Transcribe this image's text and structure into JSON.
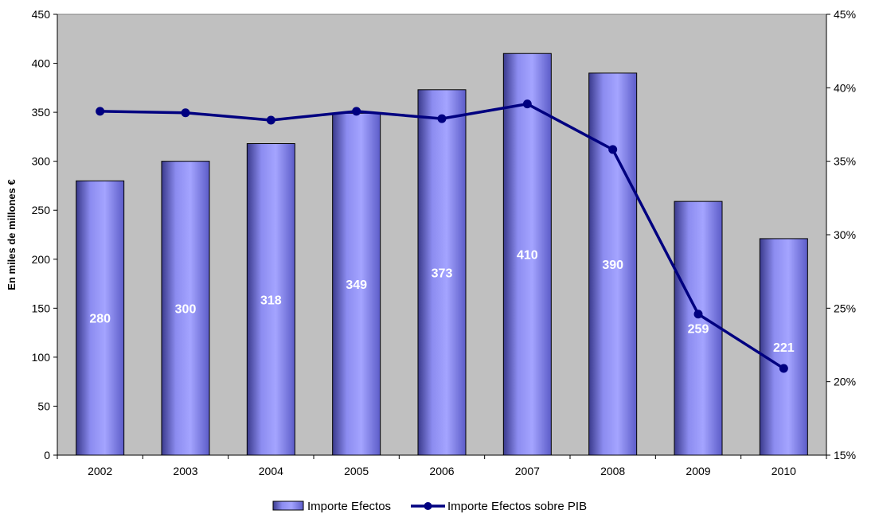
{
  "chart_data": {
    "type": "bar",
    "categories": [
      "2002",
      "2003",
      "2004",
      "2005",
      "2006",
      "2007",
      "2008",
      "2009",
      "2010"
    ],
    "series": [
      {
        "name": "Importe Efectos",
        "type": "bar",
        "axis": "left",
        "values": [
          280,
          300,
          318,
          349,
          373,
          410,
          390,
          259,
          221
        ],
        "data_labels": [
          "280",
          "300",
          "318",
          "349",
          "373",
          "410",
          "390",
          "259",
          "221"
        ]
      },
      {
        "name": "Importe Efectos sobre PIB",
        "type": "line",
        "axis": "right",
        "values": [
          38.4,
          38.3,
          37.8,
          38.4,
          37.9,
          38.9,
          35.8,
          24.6,
          20.9
        ]
      }
    ],
    "ylabel": "En miles de millones €",
    "ylim": [
      0,
      450
    ],
    "yticks": [
      "0",
      "50",
      "100",
      "150",
      "200",
      "250",
      "300",
      "350",
      "400",
      "450"
    ],
    "y2lim": [
      15,
      45
    ],
    "y2ticks": [
      "15%",
      "20%",
      "25%",
      "30%",
      "35%",
      "40%",
      "45%"
    ],
    "grid": false,
    "legend": "bottom",
    "colors": {
      "plot_background": "#c0c0c0",
      "bar_fill": "#9999ff",
      "bar_edge": "#000000",
      "line": "#000080",
      "bar_label_text": "#ffffff"
    }
  }
}
